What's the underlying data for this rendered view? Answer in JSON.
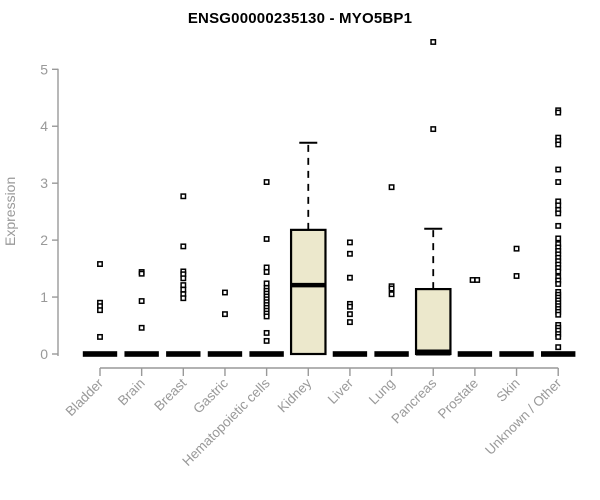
{
  "chart_data": {
    "type": "boxplot",
    "title": "ENSG00000235130 - MYO5BP1",
    "ylabel": "Expression",
    "xlabel": "",
    "ylim": [
      0,
      5
    ],
    "yticks": [
      0,
      1,
      2,
      3,
      4,
      5
    ],
    "grid": false,
    "legend": "none",
    "colors": {
      "box_fill": "#ECE8CC",
      "box_stroke": "#000000",
      "median": "#000000",
      "axis": "#999999",
      "tick_text": "#999999",
      "title_text": "#000000",
      "outlier_fill": "#FFFFFF",
      "outlier_stroke": "#000000",
      "background": "#FFFFFF"
    },
    "categories": [
      "Bladder",
      "Brain",
      "Breast",
      "Gastric",
      "Hematopoietic cells",
      "Kidney",
      "Liver",
      "Lung",
      "Pancreas",
      "Prostate",
      "Skin",
      "Unknown / Other"
    ],
    "series": [
      {
        "category": "Bladder",
        "box": {
          "low_whisker": 0,
          "q1": 0,
          "median": 0,
          "q3": 0,
          "high_whisker": 0
        },
        "outliers": [
          1.58,
          0.9,
          0.84,
          0.77,
          0.3
        ]
      },
      {
        "category": "Brain",
        "box": {
          "low_whisker": 0,
          "q1": 0,
          "median": 0,
          "q3": 0,
          "high_whisker": 0
        },
        "outliers": [
          1.44,
          1.41,
          0.93,
          0.46
        ]
      },
      {
        "category": "Breast",
        "box": {
          "low_whisker": 0,
          "q1": 0,
          "median": 0,
          "q3": 0,
          "high_whisker": 0
        },
        "outliers": [
          2.77,
          1.89,
          1.45,
          1.4,
          1.33,
          1.21,
          1.13,
          1.05,
          0.98
        ]
      },
      {
        "category": "Gastric",
        "box": {
          "low_whisker": 0,
          "q1": 0,
          "median": 0,
          "q3": 0,
          "high_whisker": 0
        },
        "outliers": [
          1.08,
          0.7
        ]
      },
      {
        "category": "Hematopoietic cells",
        "box": {
          "low_whisker": 0,
          "q1": 0,
          "median": 0,
          "q3": 0,
          "high_whisker": 0
        },
        "outliers": [
          3.02,
          2.02,
          1.52,
          1.44,
          1.24,
          1.16,
          1.11,
          1.06,
          1.01,
          0.96,
          0.91,
          0.86,
          0.81,
          0.76,
          0.71,
          0.66,
          0.37,
          0.23
        ]
      },
      {
        "category": "Kidney",
        "box": {
          "low_whisker": 0,
          "q1": 0,
          "median": 1.21,
          "q3": 2.18,
          "high_whisker": 3.71
        },
        "outliers": []
      },
      {
        "category": "Liver",
        "box": {
          "low_whisker": 0,
          "q1": 0,
          "median": 0,
          "q3": 0,
          "high_whisker": 0
        },
        "outliers": [
          1.96,
          1.76,
          1.34,
          0.88,
          0.83,
          0.7,
          0.56
        ]
      },
      {
        "category": "Lung",
        "box": {
          "low_whisker": 0,
          "q1": 0,
          "median": 0,
          "q3": 0,
          "high_whisker": 0
        },
        "outliers": [
          2.93,
          1.19,
          1.15,
          1.05
        ]
      },
      {
        "category": "Pancreas",
        "box": {
          "low_whisker": 0,
          "q1": 0,
          "median": 0,
          "q3": 1.14,
          "high_whisker": 2.2
        },
        "outliers": [
          5.48,
          3.95
        ]
      },
      {
        "category": "Prostate",
        "box": {
          "low_whisker": 0,
          "q1": 0,
          "median": 0,
          "q3": 0,
          "high_whisker": 0
        },
        "outliers": [
          1.3,
          1.3
        ]
      },
      {
        "category": "Skin",
        "box": {
          "low_whisker": 0,
          "q1": 0,
          "median": 0,
          "q3": 0,
          "high_whisker": 0
        },
        "outliers": [
          1.85,
          1.37
        ]
      },
      {
        "category": "Unknown / Other",
        "box": {
          "low_whisker": 0,
          "q1": 0,
          "median": 0,
          "q3": 0,
          "high_whisker": 0
        },
        "outliers": [
          4.28,
          4.24,
          3.8,
          3.74,
          3.68,
          3.24,
          3.02,
          2.68,
          2.61,
          2.53,
          2.47,
          2.25,
          2.03,
          1.93,
          1.87,
          1.81,
          1.75,
          1.69,
          1.63,
          1.57,
          1.51,
          1.45,
          1.35,
          1.29,
          1.23,
          1.09,
          1.04,
          0.99,
          0.94,
          0.89,
          0.84,
          0.79,
          0.74,
          0.69,
          0.51,
          0.46,
          0.41,
          0.35,
          0.3,
          0.12
        ]
      }
    ]
  }
}
